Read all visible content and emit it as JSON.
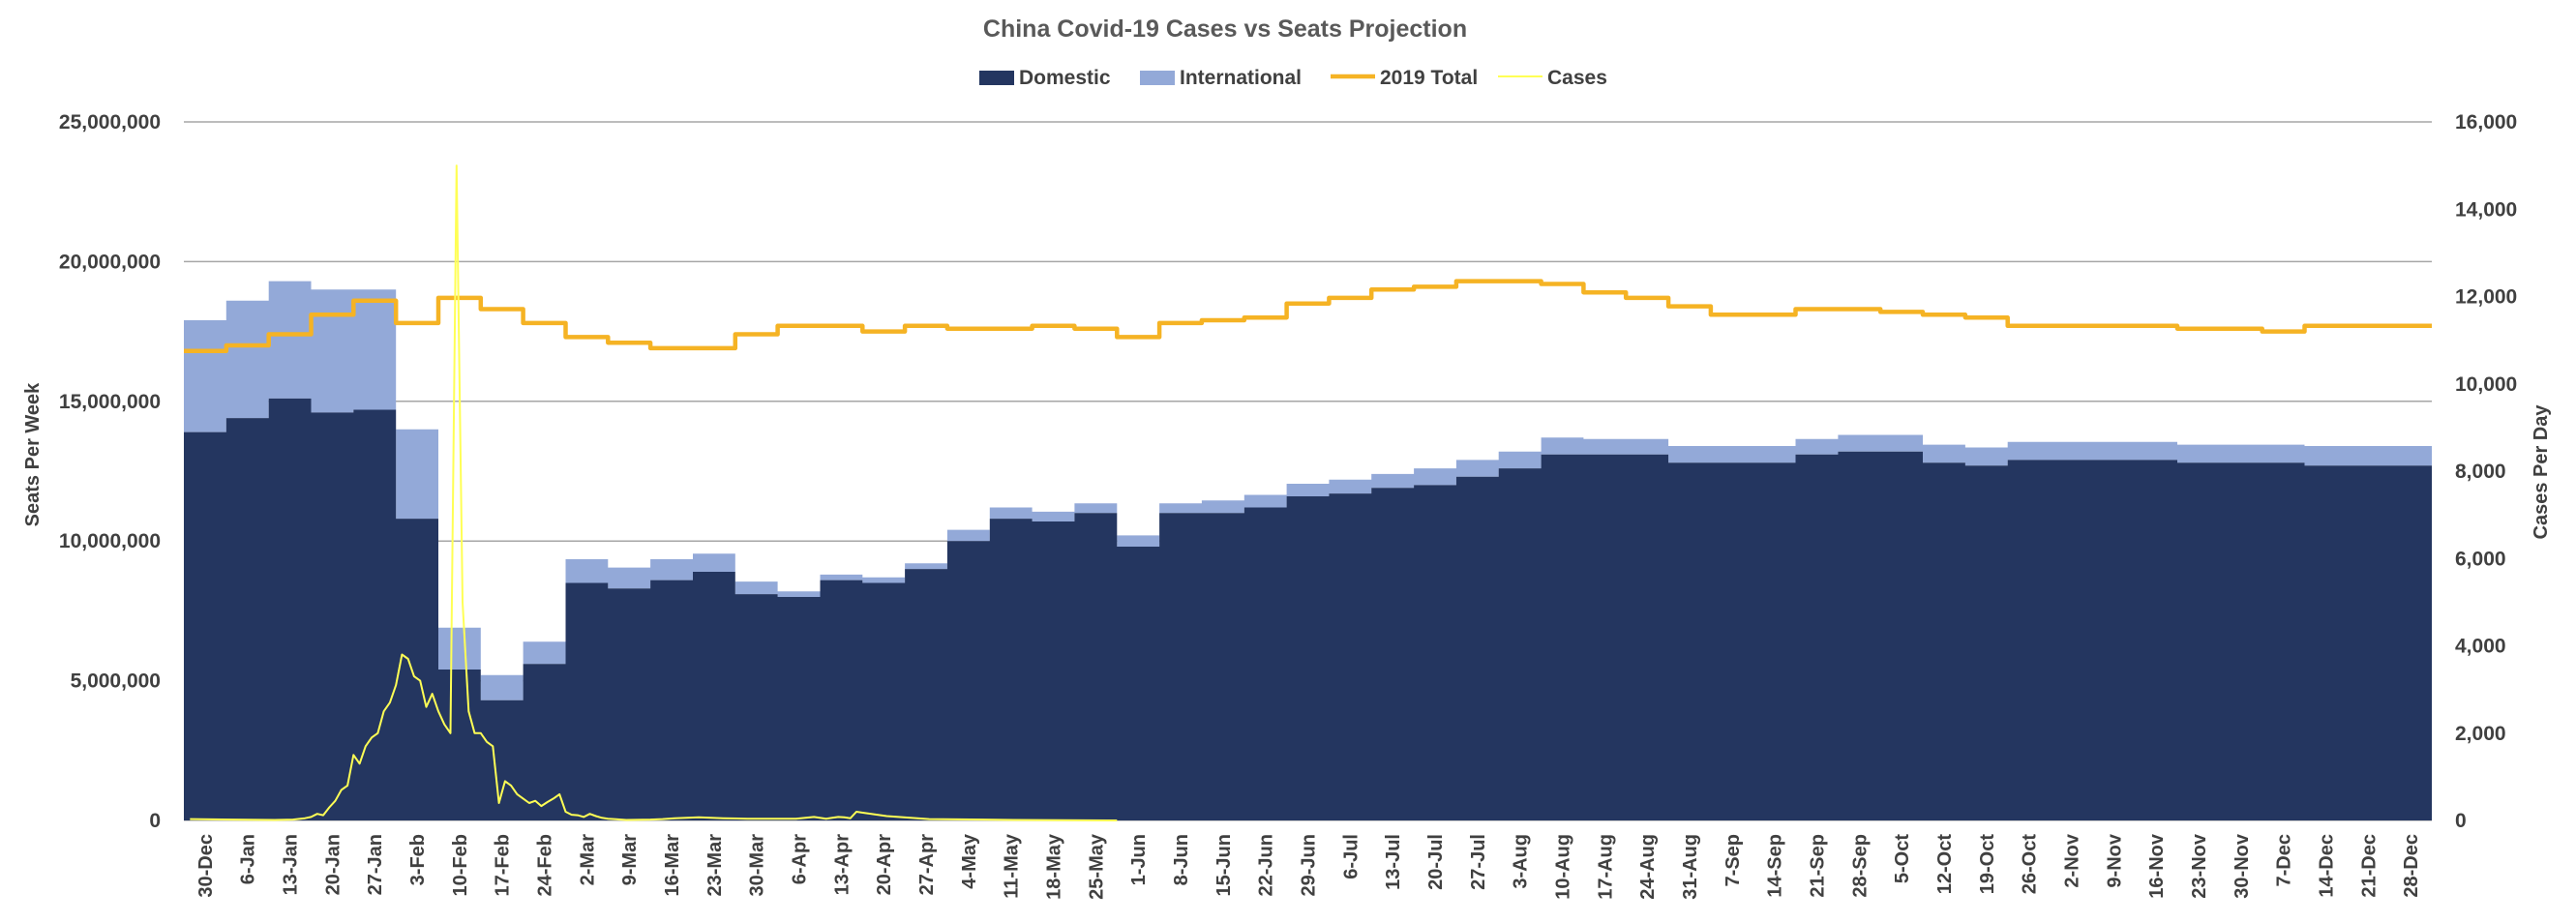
{
  "chart_data": {
    "type": "area",
    "title": "China Covid-19 Cases vs Seats Projection",
    "ylabel": "Seats Per Week",
    "y2label": "Cases Per Day",
    "ylim": [
      0,
      25000000
    ],
    "y2lim": [
      0,
      16000
    ],
    "yticks": [
      "0",
      "5,000,000",
      "10,000,000",
      "15,000,000",
      "20,000,000",
      "25,000,000"
    ],
    "y2ticks": [
      "0",
      "2,000",
      "4,000",
      "6,000",
      "8,000",
      "10,000",
      "12,000",
      "14,000",
      "16,000"
    ],
    "grid": true,
    "legend_position": "top",
    "categories": [
      "30-Dec",
      "6-Jan",
      "13-Jan",
      "20-Jan",
      "27-Jan",
      "3-Feb",
      "10-Feb",
      "17-Feb",
      "24-Feb",
      "2-Mar",
      "9-Mar",
      "16-Mar",
      "23-Mar",
      "30-Mar",
      "6-Apr",
      "13-Apr",
      "20-Apr",
      "27-Apr",
      "4-May",
      "11-May",
      "18-May",
      "25-May",
      "1-Jun",
      "8-Jun",
      "15-Jun",
      "22-Jun",
      "29-Jun",
      "6-Jul",
      "13-Jul",
      "20-Jul",
      "27-Jul",
      "3-Aug",
      "10-Aug",
      "17-Aug",
      "24-Aug",
      "31-Aug",
      "7-Sep",
      "14-Sep",
      "21-Sep",
      "28-Sep",
      "5-Oct",
      "12-Oct",
      "19-Oct",
      "26-Oct",
      "2-Nov",
      "9-Nov",
      "16-Nov",
      "23-Nov",
      "30-Nov",
      "7-Dec",
      "14-Dec",
      "21-Dec",
      "28-Dec"
    ],
    "series": [
      {
        "name": "Domestic",
        "type": "stacked-area",
        "color": "#243660",
        "values": [
          13900000,
          14400000,
          15100000,
          14600000,
          14700000,
          10800000,
          5400000,
          4300000,
          5600000,
          8500000,
          8300000,
          8600000,
          8900000,
          8100000,
          8000000,
          8600000,
          8500000,
          9000000,
          10000000,
          10800000,
          10700000,
          11000000,
          9800000,
          11000000,
          11000000,
          11200000,
          11600000,
          11700000,
          11900000,
          12000000,
          12300000,
          12600000,
          13100000,
          13100000,
          13100000,
          12800000,
          12800000,
          12800000,
          13100000,
          13200000,
          13200000,
          12800000,
          12700000,
          12900000,
          12900000,
          12900000,
          12900000,
          12800000,
          12800000,
          12800000,
          12700000,
          12700000,
          12700000
        ]
      },
      {
        "name": "International",
        "type": "stacked-area",
        "color": "#93A9D8",
        "values": [
          4000000,
          4200000,
          4200000,
          4400000,
          4300000,
          3200000,
          1500000,
          900000,
          800000,
          850000,
          750000,
          750000,
          650000,
          450000,
          200000,
          200000,
          200000,
          200000,
          400000,
          400000,
          350000,
          350000,
          400000,
          350000,
          450000,
          450000,
          450000,
          500000,
          500000,
          600000,
          600000,
          600000,
          600000,
          550000,
          550000,
          600000,
          600000,
          600000,
          550000,
          600000,
          600000,
          650000,
          650000,
          650000,
          650000,
          650000,
          650000,
          650000,
          650000,
          650000,
          700000,
          700000,
          700000
        ]
      },
      {
        "name": "2019 Total",
        "type": "line",
        "color": "#F5B324",
        "values": [
          16800000,
          17000000,
          17400000,
          18100000,
          18600000,
          17800000,
          18700000,
          18300000,
          17800000,
          17300000,
          17100000,
          16900000,
          16900000,
          17400000,
          17700000,
          17700000,
          17500000,
          17700000,
          17600000,
          17600000,
          17700000,
          17600000,
          17300000,
          17800000,
          17900000,
          18000000,
          18500000,
          18700000,
          19000000,
          19100000,
          19300000,
          19300000,
          19200000,
          18900000,
          18700000,
          18400000,
          18100000,
          18100000,
          18300000,
          18300000,
          18200000,
          18100000,
          18000000,
          17700000,
          17700000,
          17700000,
          17700000,
          17600000,
          17600000,
          17500000,
          17700000,
          17700000,
          17700000
        ]
      },
      {
        "name": "Cases",
        "type": "line",
        "axis": "secondary",
        "color": "#FFFF55",
        "x": [
          "31-Dec",
          "7-Jan",
          "14-Jan",
          "17-Jan",
          "19-Jan",
          "20-Jan",
          "21-Jan",
          "22-Jan",
          "23-Jan",
          "24-Jan",
          "25-Jan",
          "26-Jan",
          "27-Jan",
          "28-Jan",
          "29-Jan",
          "30-Jan",
          "31-Jan",
          "1-Feb",
          "2-Feb",
          "3-Feb",
          "4-Feb",
          "5-Feb",
          "6-Feb",
          "7-Feb",
          "8-Feb",
          "9-Feb",
          "10-Feb",
          "11-Feb",
          "12-Feb",
          "13-Feb",
          "14-Feb",
          "15-Feb",
          "16-Feb",
          "17-Feb",
          "18-Feb",
          "19-Feb",
          "20-Feb",
          "21-Feb",
          "22-Feb",
          "23-Feb",
          "24-Feb",
          "25-Feb",
          "26-Feb",
          "27-Feb",
          "28-Feb",
          "29-Feb",
          "1-Mar",
          "2-Mar",
          "3-Mar",
          "4-Mar",
          "5-Mar",
          "6-Mar",
          "7-Mar",
          "8-Mar",
          "9-Mar",
          "10-Mar",
          "12-Mar",
          "16-Mar",
          "18-Mar",
          "20-Mar",
          "22-Mar",
          "24-Mar",
          "26-Mar",
          "28-Mar",
          "1-Apr",
          "5-Apr",
          "9-Apr",
          "12-Apr",
          "14-Apr",
          "15-Apr",
          "16-Apr",
          "17-Apr",
          "18-Apr",
          "19-Apr",
          "24-Apr",
          "1-May",
          "15-May",
          "1-Jun"
        ],
        "values": [
          30,
          20,
          10,
          20,
          50,
          80,
          150,
          120,
          300,
          450,
          700,
          800,
          1500,
          1300,
          1700,
          1900,
          2000,
          2500,
          2700,
          3100,
          3800,
          3700,
          3300,
          3200,
          2600,
          2900,
          2500,
          2200,
          2000,
          15000,
          5000,
          2500,
          2000,
          2000,
          1800,
          1700,
          400,
          900,
          800,
          600,
          500,
          400,
          450,
          330,
          420,
          500,
          600,
          200,
          130,
          120,
          80,
          150,
          100,
          60,
          40,
          30,
          10,
          20,
          30,
          50,
          60,
          70,
          60,
          50,
          40,
          40,
          40,
          80,
          40,
          60,
          80,
          70,
          50,
          200,
          100,
          30,
          10,
          0
        ]
      }
    ]
  }
}
